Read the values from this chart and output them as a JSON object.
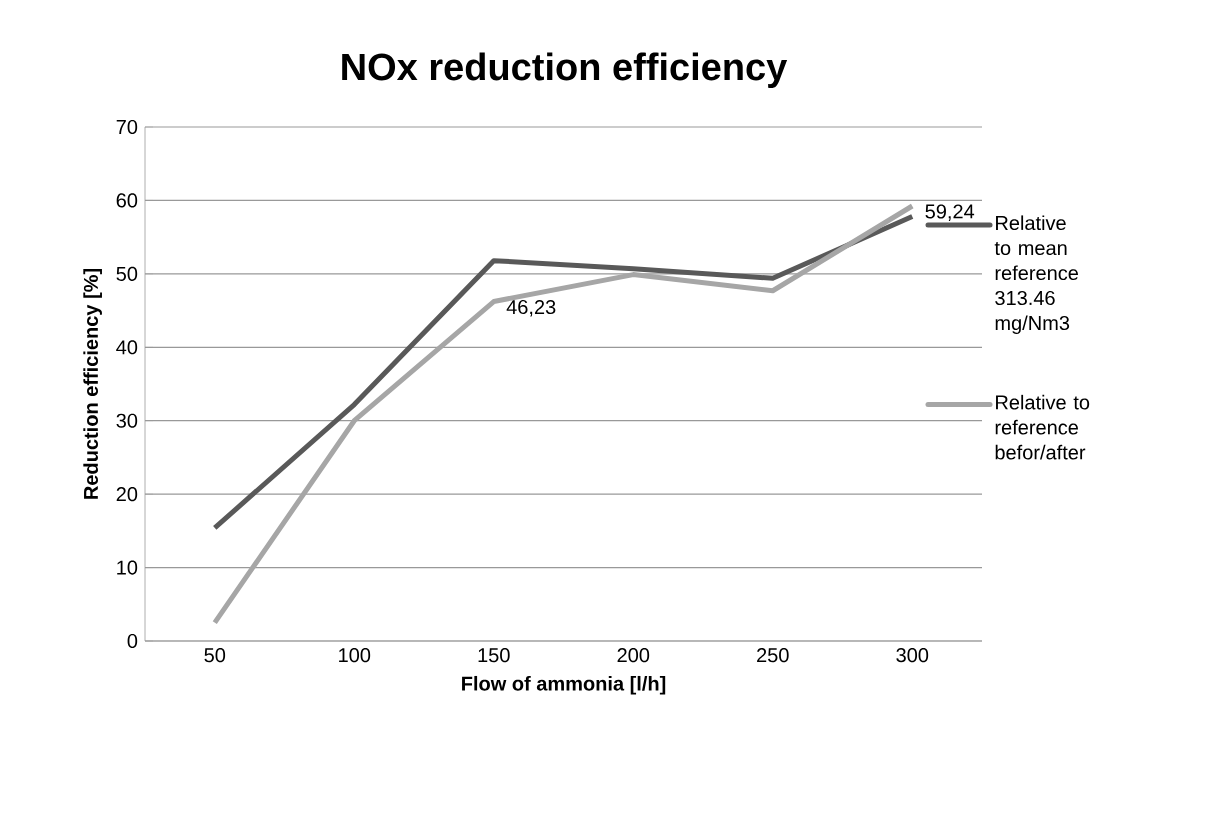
{
  "chart_data": {
    "type": "line",
    "title": "NOx reduction efficiency",
    "xlabel": "Flow of ammonia [l/h]",
    "ylabel": "Reduction efficiency [%]",
    "categories": [
      "50",
      "100",
      "150",
      "200",
      "250",
      "300"
    ],
    "series": [
      {
        "name": "Relative to mean reference 313.46 mg/Nm3",
        "color": "#595959",
        "values": [
          15.4,
          32.2,
          51.8,
          50.7,
          49.4,
          57.8
        ]
      },
      {
        "name": "Relative to reference befor/after",
        "color": "#a6a6a6",
        "values": [
          2.5,
          30.0,
          46.23,
          49.9,
          47.7,
          59.24
        ],
        "value_labels": [
          null,
          null,
          "46,23",
          null,
          null,
          "59,24"
        ]
      }
    ],
    "ylim": [
      0,
      70
    ],
    "yticks": [
      0,
      10,
      20,
      30,
      40,
      50,
      60,
      70
    ],
    "grid": "y",
    "legend": "right",
    "marker": "none",
    "line_style": "solid"
  }
}
